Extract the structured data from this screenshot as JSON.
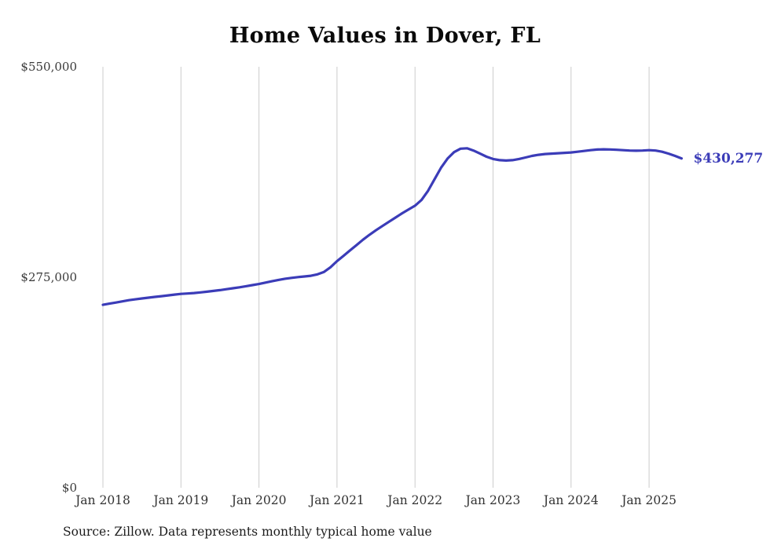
{
  "title": "Home Values in Dover, FL",
  "source_note": "Source: Zillow. Data represents monthly typical home value",
  "colors": {
    "line": "#3b3cb8",
    "grid": "#cccccc",
    "axis_text": "#333333",
    "annotation": "#3b3cb8",
    "background": "#ffffff"
  },
  "chart_data": {
    "type": "line",
    "title": "Home Values in Dover, FL",
    "xlabel": "",
    "ylabel": "",
    "ylim": [
      0,
      550000
    ],
    "grid": "vertical-only",
    "legend": "none",
    "x_start": "Jan 2018",
    "x_end": "Jun 2025",
    "x_tick_labels": [
      "Jan 2018",
      "Jan 2019",
      "Jan 2020",
      "Jan 2021",
      "Jan 2022",
      "Jan 2023",
      "Jan 2024",
      "Jan 2025"
    ],
    "y_ticks": [
      {
        "label": "$0",
        "value": 0
      },
      {
        "label": "$275,000",
        "value": 275000
      },
      {
        "label": "$550,000",
        "value": 550000
      }
    ],
    "current_value": 430277,
    "current_value_label": "$430,277",
    "series": [
      {
        "name": "Typical home value (monthly)",
        "start_month": "2018-01",
        "values": [
          239000,
          240500,
          242000,
          243500,
          245000,
          246200,
          247300,
          248300,
          249300,
          250300,
          251300,
          252300,
          253200,
          253800,
          254400,
          255200,
          256100,
          257100,
          258200,
          259400,
          260600,
          261900,
          263300,
          264700,
          266200,
          268000,
          269800,
          271500,
          273000,
          274200,
          275200,
          276000,
          277000,
          278800,
          282000,
          288000,
          296000,
          303000,
          310000,
          317000,
          324000,
          330500,
          336500,
          342000,
          347500,
          353000,
          358500,
          363500,
          368500,
          376000,
          388000,
          403000,
          418000,
          430000,
          438500,
          443000,
          443500,
          440500,
          436500,
          432500,
          429500,
          428000,
          427500,
          428000,
          429500,
          431500,
          433500,
          435000,
          436000,
          436500,
          437000,
          437500,
          438000,
          439000,
          440000,
          441000,
          441800,
          442200,
          442000,
          441500,
          441000,
          440500,
          440300,
          440500,
          441000,
          440500,
          439000,
          436500,
          433500,
          430277
        ]
      }
    ]
  }
}
